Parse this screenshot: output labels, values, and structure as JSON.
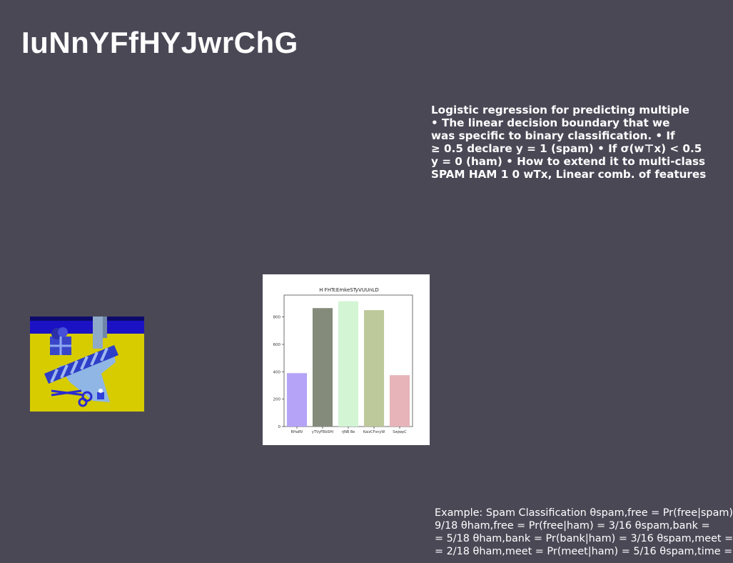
{
  "slide": {
    "title": "IuNnYFfHYJwrChG",
    "text_block_1": [
      "Logistic regression for predicting multiple",
      "• The linear decision boundary that we",
      "was specific to binary classification. • If",
      "≥ 0.5 declare y = 1 (spam) • If σ(w⊤x) < 0.5",
      "y = 0 (ham) • How to extend it to multi-class",
      "SPAM HAM 1 0 wTx, Linear comb. of features"
    ],
    "text_block_2": [
      "Example: Spam Classification θspam,free = Pr(free|spam)",
      "9/18 θham,free = Pr(free|ham) = 3/16 θspam,bank =",
      "= 5/18 θham,bank = Pr(bank|ham) = 3/16 θspam,meet =",
      "= 2/18 θham,meet = Pr(meet|ham) = 5/16 θspam,time ="
    ]
  },
  "colors": {
    "background": "#4b4856",
    "text": "#ffffff"
  },
  "chart_data": {
    "type": "bar",
    "title": "H FHTcEmkeSTyVUUnLD",
    "categories": [
      "RHaRV",
      "yTVyFBbSHI",
      "rjNB Be",
      "KaizCFsnyW",
      "SwjwpC"
    ],
    "values": [
      390,
      865,
      915,
      850,
      375
    ],
    "colors": [
      "#b5a3f8",
      "#858b7b",
      "#d3f5d4",
      "#bec99b",
      "#e6b4b9"
    ],
    "ylim": [
      0,
      960
    ],
    "yticks": [
      0,
      200,
      400,
      600,
      800
    ],
    "xlabel": "",
    "ylabel": "",
    "grid": false
  }
}
